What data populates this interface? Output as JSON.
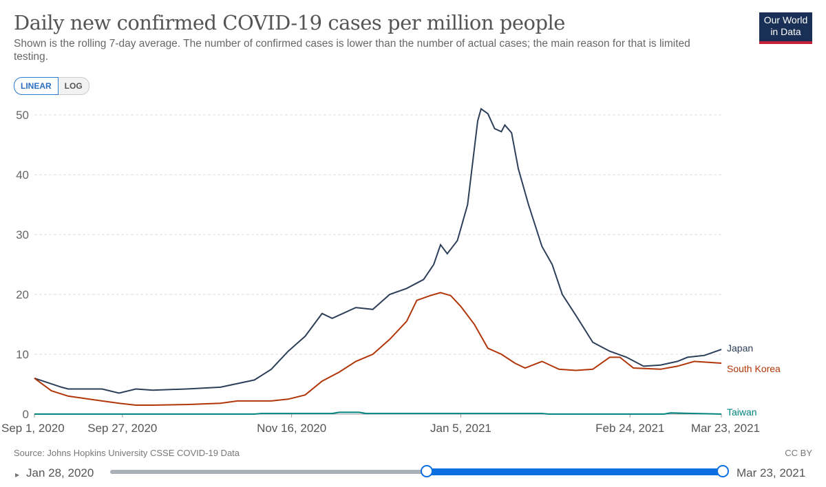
{
  "header": {
    "title": "Daily new confirmed COVID-19 cases per million people",
    "subtitle": "Shown is the rolling 7-day average. The number of confirmed cases is lower than the number of actual cases; the main reason for that is limited testing.",
    "logo": "Our World in Data"
  },
  "controls": {
    "linear": "LINEAR",
    "log": "LOG"
  },
  "footer": {
    "source": "Source: Johns Hopkins University CSSE COVID-19 Data",
    "license": "CC BY"
  },
  "timeline": {
    "start_label": "Jan 28, 2020",
    "end_label": "Mar 23, 2021",
    "selected_start_fraction": 0.517,
    "selected_end_fraction": 1.0
  },
  "chart_data": {
    "type": "line",
    "title": "Daily new confirmed COVID-19 cases per million people",
    "ylim": [
      0,
      50
    ],
    "yticks": [
      0,
      10,
      20,
      30,
      40,
      50
    ],
    "xlim_days": [
      0,
      203
    ],
    "xticks": [
      {
        "day": 0,
        "label": "Sep 1, 2020"
      },
      {
        "day": 26,
        "label": "Sep 27, 2020"
      },
      {
        "day": 76,
        "label": "Nov 16, 2020"
      },
      {
        "day": 126,
        "label": "Jan 5, 2021"
      },
      {
        "day": 176,
        "label": "Feb 24, 2021"
      },
      {
        "day": 203,
        "label": "Mar 23, 2021"
      }
    ],
    "x_unit": "days since Sep 1, 2020",
    "series": [
      {
        "name": "Japan",
        "color": "#2d3e58",
        "points": [
          [
            0,
            6
          ],
          [
            8,
            4.5
          ],
          [
            10,
            4.2
          ],
          [
            20,
            4.2
          ],
          [
            25,
            3.5
          ],
          [
            30,
            4.2
          ],
          [
            35,
            4.0
          ],
          [
            45,
            4.2
          ],
          [
            55,
            4.5
          ],
          [
            65,
            5.7
          ],
          [
            70,
            7.5
          ],
          [
            75,
            10.5
          ],
          [
            80,
            13
          ],
          [
            85,
            16.8
          ],
          [
            88,
            16
          ],
          [
            95,
            17.8
          ],
          [
            100,
            17.5
          ],
          [
            105,
            20
          ],
          [
            110,
            21
          ],
          [
            115,
            22.5
          ],
          [
            118,
            25
          ],
          [
            120,
            28.3
          ],
          [
            122,
            26.8
          ],
          [
            125,
            29
          ],
          [
            128,
            35
          ],
          [
            131,
            49
          ],
          [
            132,
            51
          ],
          [
            134,
            50.2
          ],
          [
            136,
            47.7
          ],
          [
            138,
            47.2
          ],
          [
            139,
            48.3
          ],
          [
            141,
            47
          ],
          [
            143,
            41
          ],
          [
            146,
            35
          ],
          [
            150,
            28
          ],
          [
            153,
            25
          ],
          [
            156,
            20
          ],
          [
            160,
            16.5
          ],
          [
            165,
            12
          ],
          [
            170,
            10.5
          ],
          [
            175,
            9.5
          ],
          [
            180,
            8.0
          ],
          [
            185,
            8.2
          ],
          [
            190,
            8.8
          ],
          [
            193,
            9.5
          ],
          [
            198,
            9.8
          ],
          [
            203,
            10.8
          ]
        ]
      },
      {
        "name": "South Korea",
        "color": "#b13507",
        "points": [
          [
            0,
            6
          ],
          [
            5,
            3.9
          ],
          [
            10,
            3.0
          ],
          [
            15,
            2.6
          ],
          [
            20,
            2.2
          ],
          [
            25,
            1.8
          ],
          [
            30,
            1.5
          ],
          [
            35,
            1.5
          ],
          [
            45,
            1.6
          ],
          [
            55,
            1.8
          ],
          [
            60,
            2.2
          ],
          [
            70,
            2.2
          ],
          [
            75,
            2.5
          ],
          [
            80,
            3.2
          ],
          [
            85,
            5.5
          ],
          [
            90,
            7
          ],
          [
            95,
            8.8
          ],
          [
            100,
            10
          ],
          [
            105,
            12.5
          ],
          [
            110,
            15.5
          ],
          [
            113,
            19
          ],
          [
            117,
            19.8
          ],
          [
            120,
            20.3
          ],
          [
            123,
            19.8
          ],
          [
            126,
            18
          ],
          [
            130,
            15
          ],
          [
            134,
            11
          ],
          [
            138,
            10
          ],
          [
            142,
            8.5
          ],
          [
            145,
            7.7
          ],
          [
            150,
            8.8
          ],
          [
            155,
            7.5
          ],
          [
            160,
            7.3
          ],
          [
            165,
            7.5
          ],
          [
            170,
            9.5
          ],
          [
            173,
            9.5
          ],
          [
            177,
            7.7
          ],
          [
            185,
            7.5
          ],
          [
            190,
            8.0
          ],
          [
            195,
            8.8
          ],
          [
            203,
            8.5
          ]
        ]
      },
      {
        "name": "Taiwan",
        "color": "#00847e",
        "points": [
          [
            0,
            0
          ],
          [
            65,
            0
          ],
          [
            67,
            0.1
          ],
          [
            70,
            0.1
          ],
          [
            88,
            0.1
          ],
          [
            90,
            0.3
          ],
          [
            96,
            0.3
          ],
          [
            98,
            0.1
          ],
          [
            150,
            0.1
          ],
          [
            152,
            0
          ],
          [
            186,
            0
          ],
          [
            188,
            0.2
          ],
          [
            195,
            0.1
          ],
          [
            203,
            0
          ]
        ]
      }
    ]
  }
}
